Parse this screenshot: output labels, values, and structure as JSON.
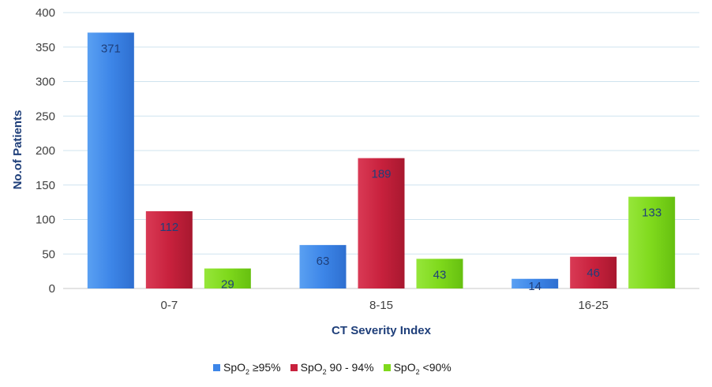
{
  "chart_data": {
    "type": "bar",
    "xlabel": "CT Severity Index",
    "ylabel": "No.of Patients",
    "categories": [
      "0-7",
      "8-15",
      "16-25"
    ],
    "ylim": [
      0,
      400
    ],
    "yticks": [
      0,
      50,
      100,
      150,
      200,
      250,
      300,
      350,
      400
    ],
    "grid": true,
    "legend_position": "bottom",
    "series": [
      {
        "name": "SpO2 ≥95%",
        "values": [
          371,
          63,
          14
        ],
        "color": "#3d86e8",
        "legend": {
          "prefix": "SpO",
          "sub": "2",
          "suffix": " ≥95%"
        }
      },
      {
        "name": "SpO2 90 - 94%",
        "values": [
          112,
          189,
          46
        ],
        "color": "#c8213d",
        "legend": {
          "prefix": "SpO",
          "sub": "2",
          "suffix": " 90 - 94%"
        }
      },
      {
        "name": "SpO2 <90%",
        "values": [
          29,
          43,
          133
        ],
        "color": "#7fd91c",
        "legend": {
          "prefix": "SpO",
          "sub": "2",
          "suffix": " <90%"
        }
      }
    ]
  }
}
